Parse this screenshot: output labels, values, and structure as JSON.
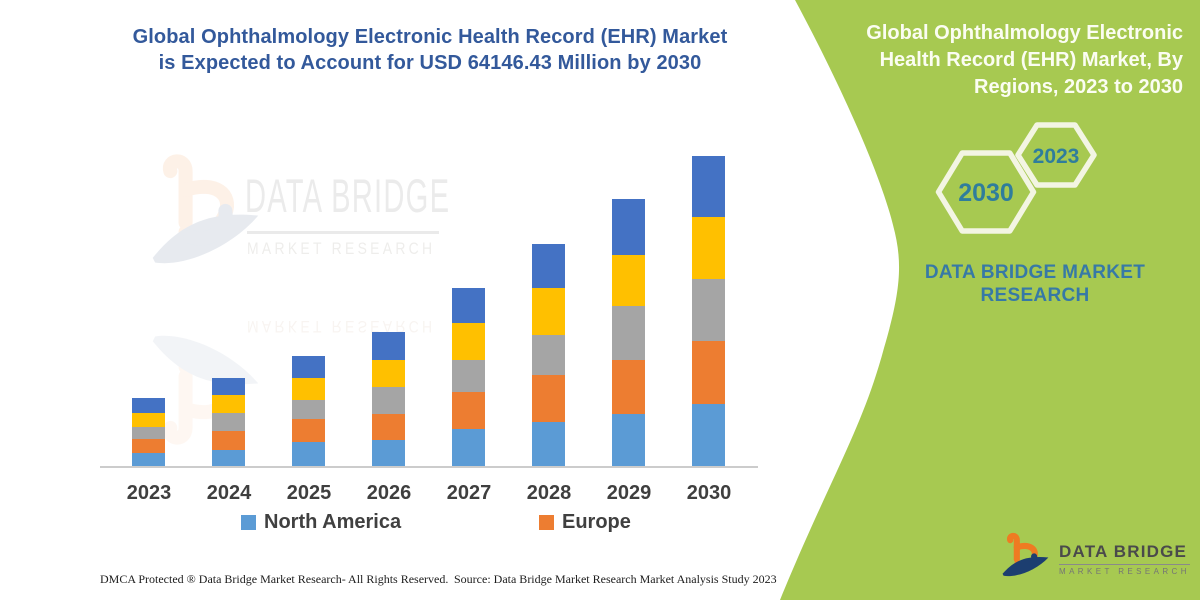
{
  "left_panel": {
    "title_line1": "Global Ophthalmology Electronic Health Record (EHR) Market",
    "title_line2": "is Expected to Account for USD 64146.43 Million by 2030",
    "watermark": {
      "brand": "DATA BRIDGE",
      "sub": "MARKET RESEARCH"
    },
    "footer": {
      "dmca": "DMCA Protected ® Data Bridge Market Research-  All Rights Reserved.",
      "source": "Source: Data Bridge Market Research  Market Analysis Study 2023"
    }
  },
  "chart_data": {
    "type": "bar",
    "stacked": true,
    "title": "Global Ophthalmology Electronic Health Record (EHR) Market is Expected to Account for USD 64146.43 Million by 2030",
    "xlabel": "",
    "ylabel": "",
    "y_axis_shown": false,
    "units": "relative height units (no y-axis scale shown in image)",
    "categories": [
      "2023",
      "2024",
      "2025",
      "2026",
      "2027",
      "2028",
      "2029",
      "2030"
    ],
    "series": [
      {
        "name": "North America",
        "color": "#5B9BD5",
        "values": [
          13,
          16,
          24,
          26,
          37,
          44,
          52,
          62
        ]
      },
      {
        "name": "Europe",
        "color": "#ED7D31",
        "values": [
          14,
          19,
          23,
          26,
          37,
          47,
          54,
          63
        ]
      },
      {
        "name": "unlabeled-gray-series",
        "color": "#A5A5A5",
        "values": [
          12,
          18,
          19,
          27,
          32,
          40,
          54,
          62
        ]
      },
      {
        "name": "unlabeled-yellow-series",
        "color": "#FFC000",
        "values": [
          14,
          18,
          22,
          27,
          37,
          47,
          51,
          62
        ]
      },
      {
        "name": "unlabeled-blue-series",
        "color": "#4472C4",
        "values": [
          15,
          17,
          22,
          28,
          35,
          44,
          56,
          61
        ]
      }
    ],
    "legend": [
      {
        "label": "North America",
        "color": "#5B9BD5"
      },
      {
        "label": "Europe",
        "color": "#ED7D31"
      }
    ],
    "legend_position": "bottom",
    "grid": false,
    "annotation": "Market expected to account for USD 64146.43 Million by 2030"
  },
  "right_panel": {
    "title_lines": [
      "Global Ophthalmology Electronic",
      "Health Record (EHR) Market, By",
      "Regions, 2023 to 2030"
    ],
    "hexagons": [
      {
        "label": "2030"
      },
      {
        "label": "2023"
      }
    ],
    "caption_line1": "DATA BRIDGE MARKET",
    "caption_line2": "RESEARCH",
    "logo": {
      "brand": "DATA BRIDGE",
      "sub": "MARKET RESEARCH"
    },
    "colors": {
      "panel_green": "#A7C951",
      "hexagon_stroke": "#F3F5E3",
      "teal_text": "#3779A6",
      "hex_year_text": "#2F7D9C",
      "title_white": "#FBFDF2"
    }
  },
  "colors": {
    "left_title_blue": "#33599B",
    "axis_line": "#CCCCCC",
    "axis_label": "#3F3F3F",
    "logo_orange": "#EE7B22",
    "logo_navy": "#1C3E70"
  }
}
